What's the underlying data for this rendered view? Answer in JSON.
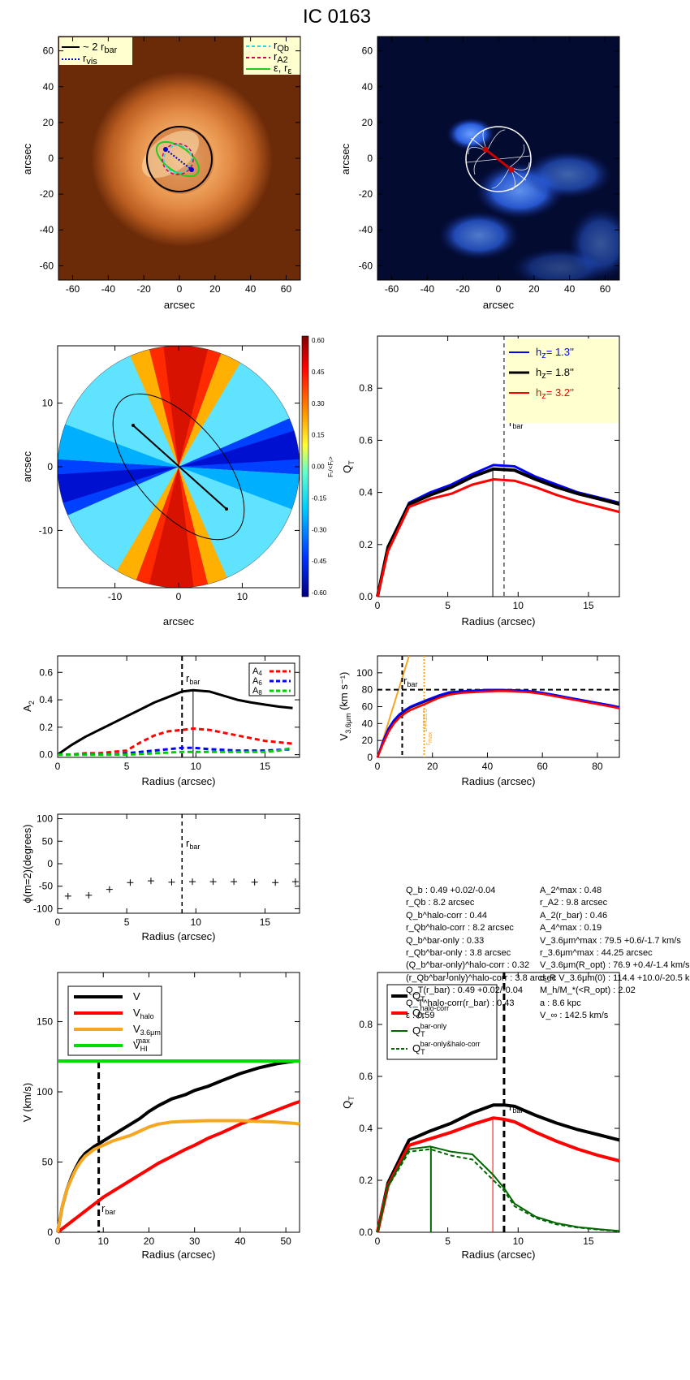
{
  "title": "IC 0163",
  "panels": {
    "p1": {
      "xlabel": "arcsec",
      "ylabel": "arcsec",
      "legend_left": [
        "~ 2 r",
        "r"
      ],
      "legend_left_sub": [
        "bar",
        "vis"
      ],
      "legend_right": [
        "r",
        "r",
        "ε, r"
      ],
      "legend_right_sub": [
        "Qb",
        "A2",
        "ε"
      ]
    },
    "p2": {
      "xlabel": "arcsec",
      "ylabel": "arcsec"
    },
    "p3": {
      "xlabel": "arcsec",
      "ylabel": "arcsec",
      "colorbar_label": "Fₜ/<Fᵣ>",
      "colorbar_ticks": [
        "0.60",
        "0.45",
        "0.30",
        "0.15",
        "0.00",
        "-0.15",
        "-0.30",
        "-0.45",
        "-0.60"
      ]
    },
    "p4": {
      "xlabel": "Radius (arcsec)",
      "ylabel": "Q",
      "ylabel_sub": "T",
      "rbar_label": "r",
      "rbar_sub": "bar",
      "legend": [
        {
          "text": "h",
          "sub": "z",
          "value": "= 1.3''",
          "color": "#0000ff"
        },
        {
          "text": "h",
          "sub": "z",
          "value": "= 1.8''",
          "color": "#000000"
        },
        {
          "text": "h",
          "sub": "z",
          "value": "= 3.2''",
          "color": "#ff0000"
        }
      ]
    },
    "p5": {
      "xlabel": "Radius (arcsec)",
      "ylabel": "A",
      "ylabel_sub": "2",
      "rbar_label": "r",
      "rbar_sub": "bar",
      "legend": [
        {
          "text": "A",
          "sub": "4",
          "color": "#ff0000"
        },
        {
          "text": "A",
          "sub": "6",
          "color": "#0000ff"
        },
        {
          "text": "A",
          "sub": "8",
          "color": "#00cc00"
        }
      ]
    },
    "p6": {
      "xlabel": "Radius (arcsec)",
      "ylabel": "V",
      "ylabel_sub": "3.6μm",
      "ylabel_tail": " (km s⁻¹)",
      "rbar_label": "r",
      "rbar_sub": "bar",
      "rmax_label": "r",
      "rmax_sub": "max",
      "rmax_sup": "1/4R25.5"
    },
    "p7": {
      "xlabel": "Radius (arcsec)",
      "ylabel": "ϕ(m=2)(degrees)",
      "rbar_label": "r",
      "rbar_sub": "bar"
    },
    "p9": {
      "xlabel": "Radius (arcsec)",
      "ylabel": "V (km/s)",
      "rbar_label": "r",
      "rbar_sub": "bar",
      "legend": [
        {
          "text": "V",
          "sub": "",
          "sup": "",
          "color": "#000000"
        },
        {
          "text": "V",
          "sub": "halo",
          "sup": "",
          "color": "#ff0000"
        },
        {
          "text": "V",
          "sub": "3.6μm",
          "sup": "",
          "color": "#f5a623"
        },
        {
          "text": "V",
          "sub": "HI",
          "sup": "max",
          "color": "#00dd00"
        }
      ]
    },
    "p10": {
      "xlabel": "Radius (arcsec)",
      "ylabel": "Q",
      "ylabel_sub": "T",
      "rbar_label": "r",
      "rbar_sub": "bar",
      "legend": [
        {
          "text": "Q",
          "sub": "T",
          "sup": "",
          "color": "#000000"
        },
        {
          "text": "Q",
          "sub": "T",
          "sup": "halo-corr",
          "color": "#ff0000"
        },
        {
          "text": "Q",
          "sub": "T",
          "sup": "bar-only",
          "color": "#006600"
        },
        {
          "text": "Q",
          "sub": "T",
          "sup": "bar-only&halo-corr",
          "color": "#006600"
        }
      ]
    }
  },
  "params": {
    "left": [
      "Q_b : 0.49 +0.02/-0.04",
      "r_Qb : 8.2 arcsec",
      "Q_b^halo-corr : 0.44",
      "r_Qb^halo-corr : 8.2 arcsec",
      "Q_b^bar-only : 0.33",
      "r_Qb^bar-only : 3.8 arcsec",
      "(Q_b^bar-only)^halo-corr : 0.32",
      "(r_Qb^bar-only)^halo-corr : 3.8 arcsec",
      "Q_T(r_bar) : 0.49 +0.02/-0.04",
      "Q_T^halo-corr(r_bar) : 0.43",
      "ε : 0.59"
    ],
    "right": [
      "A_2^max : 0.48",
      "r_A2 : 9.8 arcsec",
      "A_2(r_bar) : 0.46",
      "A_4^max : 0.19",
      "V_3.6μm^max : 79.5 +0.6/-1.7 km/s",
      "r_3.6μm^max : 44.25 arcsec",
      "V_3.6μm(R_opt) : 76.9 +0.4/-1.4 km/s",
      "d_R V_3.6μm(0) : 114.4 +10.0/-20.5 km/s/kpc",
      "M_h/M_*(<R_opt) : 2.02",
      "a : 8.6 kpc",
      "V_∞ : 142.5 km/s"
    ]
  },
  "chart_data": [
    {
      "panel": "p1",
      "type": "image",
      "xlim": [
        -68,
        68
      ],
      "ylim": [
        -68,
        68
      ],
      "xticks": [
        -60,
        -40,
        -20,
        0,
        20,
        40,
        60
      ],
      "yticks": [
        -60,
        -40,
        -20,
        0,
        20,
        40,
        60
      ],
      "colors": {
        "background": "#6b2a08",
        "disk": "#e8954a",
        "bulge": "#fde0b0",
        "rbar_circle": "#000000",
        "rvis_line": "#0000cc",
        "rQb": "#22dddd",
        "rA2": "#cc0066",
        "eps": "#22cc22"
      },
      "overlay": {
        "rbar_circle_radius": 18,
        "bar_pa_deg": -35
      }
    },
    {
      "panel": "p2",
      "type": "image",
      "xlim": [
        -68,
        68
      ],
      "ylim": [
        -68,
        68
      ],
      "xticks": [
        -60,
        -40,
        -20,
        0,
        20,
        40,
        60
      ],
      "yticks": [
        -60,
        -40,
        -20,
        0,
        20,
        40,
        60
      ],
      "colors": {
        "background": "#000000",
        "emission": "#2b6bff",
        "field_lines": "#ffffff",
        "bar_axis": "#cc0000"
      }
    },
    {
      "panel": "p3",
      "type": "heatmap",
      "xlim": [
        -19,
        19
      ],
      "ylim": [
        -19,
        19
      ],
      "xticks": [
        -10,
        0,
        10
      ],
      "yticks": [
        -10,
        0,
        10
      ],
      "clim": [
        -0.6,
        0.6
      ],
      "bar_ends": [
        [
          -7,
          6
        ],
        [
          7,
          -6.5
        ]
      ],
      "ellipse": {
        "a": 13.5,
        "b": 6.5,
        "pa_deg": -50
      }
    },
    {
      "panel": "p4",
      "type": "line",
      "xlim": [
        0,
        17.2
      ],
      "ylim": [
        0,
        1.0
      ],
      "xticks": [
        0,
        5,
        10,
        15
      ],
      "yticks": [
        0,
        0.2,
        0.4,
        0.6,
        0.8
      ],
      "rbar": 9.0,
      "rQb": 8.2,
      "x": [
        0,
        0.75,
        2.25,
        3.75,
        5.25,
        6.75,
        8.25,
        9.75,
        11.25,
        12.75,
        14.25,
        15.75,
        17.2
      ],
      "series": [
        {
          "name": "h_z = 1.3''",
          "color": "#0000ff",
          "values": [
            0,
            0.19,
            0.36,
            0.4,
            0.43,
            0.47,
            0.505,
            0.5,
            0.46,
            0.43,
            0.4,
            0.38,
            0.36
          ]
        },
        {
          "name": "h_z = 1.8''",
          "color": "#000000",
          "values": [
            0,
            0.19,
            0.355,
            0.39,
            0.42,
            0.46,
            0.49,
            0.485,
            0.45,
            0.42,
            0.395,
            0.375,
            0.355
          ]
        },
        {
          "name": "h_z = 3.2''",
          "color": "#ff0000",
          "values": [
            0,
            0.175,
            0.345,
            0.375,
            0.395,
            0.43,
            0.45,
            0.445,
            0.42,
            0.39,
            0.365,
            0.345,
            0.325
          ]
        }
      ]
    },
    {
      "panel": "p5",
      "type": "line",
      "xlim": [
        0,
        17.5
      ],
      "ylim": [
        -0.02,
        0.72
      ],
      "xticks": [
        0,
        5,
        10,
        15
      ],
      "yticks": [
        0,
        0.2,
        0.4,
        0.6
      ],
      "rbar": 9.0,
      "rA2": 9.8,
      "x": [
        0,
        1,
        2,
        3,
        4,
        5,
        6,
        7,
        8,
        9,
        9.8,
        11,
        12,
        13,
        14,
        15,
        16,
        17
      ],
      "series": [
        {
          "name": "A2",
          "color": "#000000",
          "values": [
            0,
            0.07,
            0.13,
            0.18,
            0.23,
            0.28,
            0.33,
            0.38,
            0.42,
            0.46,
            0.47,
            0.46,
            0.43,
            0.4,
            0.38,
            0.365,
            0.35,
            0.34
          ]
        },
        {
          "name": "A4",
          "color": "#ff0000",
          "values": [
            0,
            0.0,
            0.01,
            0.01,
            0.02,
            0.03,
            0.09,
            0.14,
            0.17,
            0.18,
            0.19,
            0.18,
            0.16,
            0.14,
            0.12,
            0.1,
            0.09,
            0.08
          ]
        },
        {
          "name": "A6",
          "color": "#0000ff",
          "values": [
            0,
            0,
            0,
            0,
            0,
            0.01,
            0.02,
            0.03,
            0.04,
            0.05,
            0.05,
            0.04,
            0.035,
            0.03,
            0.03,
            0.03,
            0.035,
            0.04
          ]
        },
        {
          "name": "A8",
          "color": "#00cc00",
          "values": [
            0,
            0,
            0,
            0,
            0,
            0,
            0.005,
            0.01,
            0.015,
            0.02,
            0.02,
            0.02,
            0.02,
            0.02,
            0.02,
            0.02,
            0.03,
            0.05
          ]
        }
      ]
    },
    {
      "panel": "p6",
      "type": "line",
      "xlim": [
        0,
        88
      ],
      "ylim": [
        0,
        120
      ],
      "xticks": [
        0,
        20,
        40,
        60,
        80
      ],
      "yticks": [
        0,
        20,
        40,
        60,
        80,
        100
      ],
      "rbar": 9.0,
      "rmax": 17.0,
      "vmax_line": 80,
      "x": [
        0,
        2,
        4,
        6,
        8,
        10,
        12,
        15,
        18,
        22,
        26,
        30,
        35,
        40,
        45,
        50,
        55,
        60,
        65,
        70,
        75,
        80,
        85,
        88
      ],
      "series": [
        {
          "name": "V_3.6um",
          "color": "#000000",
          "values": [
            0,
            18,
            33,
            43,
            50,
            55,
            59,
            63,
            67,
            72,
            76,
            77,
            78,
            79,
            79.5,
            79,
            78,
            76,
            73,
            70,
            67,
            64,
            61,
            59
          ]
        },
        {
          "name": "V_3.6um_alt1",
          "color": "#0000ff",
          "values": [
            0,
            19,
            34,
            44,
            51,
            56,
            60,
            64,
            68,
            73,
            77,
            78,
            79,
            80,
            80,
            79.5,
            78.5,
            76.5,
            73.5,
            70.5,
            67.5,
            64.5,
            61.5,
            59.5
          ]
        },
        {
          "name": "V_3.6um_alt2",
          "color": "#ff0000",
          "values": [
            0,
            16,
            30,
            40,
            47,
            52,
            56,
            60,
            64,
            70,
            74,
            76,
            77,
            78,
            78.5,
            78,
            77,
            75,
            72,
            69,
            66,
            63,
            60,
            58
          ]
        }
      ],
      "inner_slope": {
        "color": "#f5a623",
        "x": [
          0,
          11.5
        ],
        "y": [
          0,
          120
        ]
      }
    },
    {
      "panel": "p7",
      "type": "scatter",
      "xlim": [
        0,
        17.5
      ],
      "ylim": [
        -110,
        110
      ],
      "xticks": [
        0,
        5,
        10,
        15
      ],
      "yticks": [
        -100,
        -50,
        0,
        50,
        100
      ],
      "rbar": 9.0,
      "x": [
        0.75,
        2.25,
        3.75,
        5.25,
        6.75,
        8.25,
        9.75,
        11.25,
        12.75,
        14.25,
        15.75,
        17.2
      ],
      "values": [
        -72,
        -70,
        -57,
        -42,
        -38,
        -41,
        -40,
        -40,
        -40,
        -41,
        -42,
        -40
      ]
    },
    {
      "panel": "p9",
      "type": "line",
      "xlim": [
        0,
        53
      ],
      "ylim": [
        0,
        185
      ],
      "xticks": [
        0,
        10,
        20,
        30,
        40,
        50
      ],
      "yticks": [
        0,
        50,
        100,
        150
      ],
      "rbar": 9.0,
      "vhi_max": 122,
      "x": [
        0,
        1,
        2,
        3,
        4,
        5,
        6,
        8,
        10,
        12,
        14,
        16,
        18,
        20,
        22,
        25,
        28,
        30,
        33,
        36,
        40,
        44,
        48,
        52,
        53
      ],
      "series": [
        {
          "name": "V",
          "color": "#000000",
          "values": [
            0,
            18,
            30,
            39,
            46,
            52,
            56,
            61,
            65,
            69,
            73,
            77,
            81,
            86,
            90,
            95,
            98,
            101,
            104,
            108,
            113,
            117,
            120,
            122,
            122
          ]
        },
        {
          "name": "V_halo",
          "color": "#ff0000",
          "values": [
            0,
            2.5,
            5,
            7.5,
            10,
            12.5,
            15,
            20,
            25,
            29,
            33,
            37,
            41,
            45,
            49,
            54,
            59,
            62,
            67,
            71,
            77,
            82,
            87,
            92,
            93
          ]
        },
        {
          "name": "V_3.6um",
          "color": "#f5a623",
          "values": [
            0,
            18,
            30,
            38,
            45,
            50,
            54,
            59,
            62,
            65,
            67,
            69,
            72,
            75,
            77,
            78.5,
            79,
            79.2,
            79.5,
            79.5,
            79.5,
            79,
            78.5,
            77.5,
            77
          ]
        },
        {
          "name": "V_HI_max",
          "color": "#00dd00",
          "values": [
            122,
            122,
            122,
            122,
            122,
            122,
            122,
            122,
            122,
            122,
            122,
            122,
            122,
            122,
            122,
            122,
            122,
            122,
            122,
            122,
            122,
            122,
            122,
            122,
            122
          ]
        }
      ]
    },
    {
      "panel": "p10",
      "type": "line",
      "xlim": [
        0,
        17.2
      ],
      "ylim": [
        0,
        1.0
      ],
      "xticks": [
        0,
        5,
        10,
        15
      ],
      "yticks": [
        0,
        0.2,
        0.4,
        0.6,
        0.8
      ],
      "rbar": 9.0,
      "rQb_halo": 8.2,
      "rQb_bar": 3.8,
      "x": [
        0,
        0.75,
        2.25,
        3.75,
        5.25,
        6.75,
        8.25,
        9.0,
        9.75,
        11.25,
        12.75,
        14.25,
        15.75,
        17.2
      ],
      "series": [
        {
          "name": "Q_T",
          "color": "#000000",
          "values": [
            0,
            0.19,
            0.355,
            0.39,
            0.42,
            0.46,
            0.49,
            0.49,
            0.485,
            0.45,
            0.42,
            0.395,
            0.375,
            0.355
          ]
        },
        {
          "name": "Q_T^halo-corr",
          "color": "#ff0000",
          "values": [
            0,
            0.18,
            0.335,
            0.36,
            0.385,
            0.415,
            0.44,
            0.435,
            0.425,
            0.385,
            0.35,
            0.32,
            0.295,
            0.275
          ]
        },
        {
          "name": "Q_T^bar-only",
          "color": "#006600",
          "values": [
            0,
            0.18,
            0.32,
            0.33,
            0.31,
            0.3,
            0.22,
            0.17,
            0.11,
            0.06,
            0.035,
            0.02,
            0.012,
            0.005
          ]
        },
        {
          "name": "Q_T^bar-only&halo-corr",
          "color": "#006600",
          "dashed": true,
          "values": [
            0,
            0.175,
            0.31,
            0.32,
            0.295,
            0.28,
            0.2,
            0.16,
            0.1,
            0.055,
            0.03,
            0.018,
            0.01,
            0.004
          ]
        }
      ]
    }
  ]
}
